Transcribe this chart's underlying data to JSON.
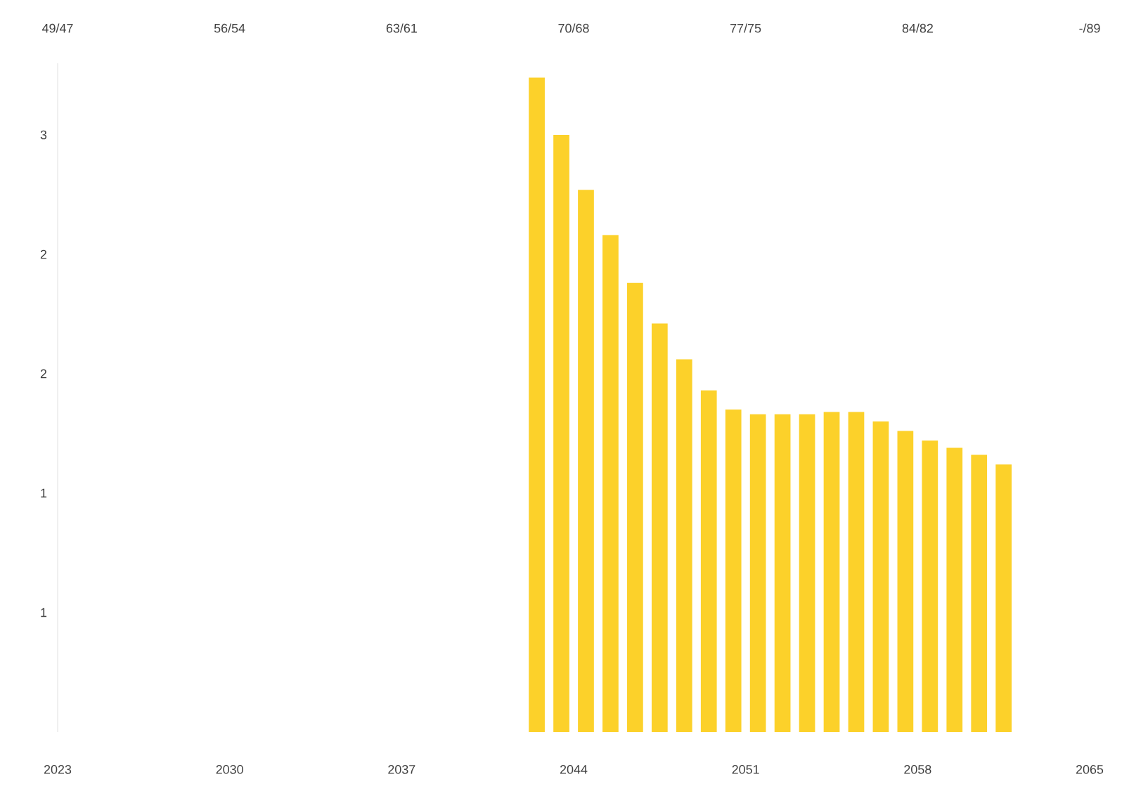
{
  "chart_data": {
    "type": "bar",
    "x": [
      2042.5,
      2043.5,
      2044.5,
      2045.5,
      2046.5,
      2047.5,
      2048.5,
      2049.5,
      2050.5,
      2051.5,
      2052.5,
      2053.5,
      2054.5,
      2055.5,
      2056.5,
      2057.5,
      2058.5,
      2059.5,
      2060.5,
      2061.5
    ],
    "values": [
      2.74,
      2.5,
      2.27,
      2.08,
      1.88,
      1.71,
      1.56,
      1.43,
      1.35,
      1.33,
      1.33,
      1.33,
      1.34,
      1.34,
      1.3,
      1.26,
      1.22,
      1.19,
      1.16,
      1.12
    ],
    "color": "#fcd12a",
    "xlim": [
      2023,
      2065
    ],
    "xticks": [
      2023,
      2030,
      2037,
      2044,
      2051,
      2058,
      2065
    ],
    "annotations": [
      "49/47",
      "56/54",
      "63/61",
      "70/68",
      "77/75",
      "84/82",
      "-/89"
    ],
    "ylim": [
      0,
      2.8
    ],
    "yticks": [
      {
        "value": 0.5,
        "label": "1"
      },
      {
        "value": 1.0,
        "label": "1"
      },
      {
        "value": 1.5,
        "label": "2"
      },
      {
        "value": 2.0,
        "label": "2"
      },
      {
        "value": 2.5,
        "label": "3"
      }
    ]
  }
}
